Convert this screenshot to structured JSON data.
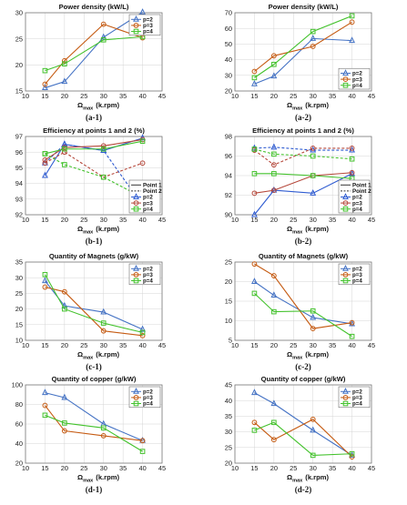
{
  "figure": {
    "charts": [
      {
        "id": "a-1",
        "title": "Power density (kW/L)",
        "caption": "(a-1)",
        "x": [
          15,
          20,
          30,
          40
        ],
        "xlim": [
          10,
          45
        ],
        "xticks": [
          10,
          15,
          20,
          25,
          30,
          35,
          40,
          45
        ],
        "ylim": [
          15,
          30
        ],
        "yticks": [
          15,
          20,
          25,
          30
        ],
        "xlabel_main": "Ω",
        "xlabel_sub": "max",
        "xlabel_unit": "(k.rpm)",
        "legend_pos": "top-right",
        "series": [
          {
            "name": "p=2",
            "color": "#4472c4",
            "marker": "triangle",
            "dash": "solid",
            "values": [
              15.6,
              16.8,
              25.3,
              30.1
            ]
          },
          {
            "name": "p=3",
            "color": "#c55a11",
            "marker": "circle",
            "dash": "solid",
            "values": [
              16.3,
              20.8,
              27.8,
              25.2
            ]
          },
          {
            "name": "p=4",
            "color": "#43c22c",
            "marker": "square",
            "dash": "solid",
            "values": [
              18.9,
              20.2,
              24.8,
              25.4
            ]
          }
        ]
      },
      {
        "id": "a-2",
        "title": "Power density (kW/L)",
        "caption": "(a-2)",
        "x": [
          15,
          20,
          30,
          40
        ],
        "xlim": [
          10,
          45
        ],
        "xticks": [
          10,
          15,
          20,
          25,
          30,
          35,
          40,
          45
        ],
        "ylim": [
          20,
          70
        ],
        "yticks": [
          20,
          30,
          40,
          50,
          60,
          70
        ],
        "xlabel_main": "Ω",
        "xlabel_sub": "max",
        "xlabel_unit": "(k.rpm)",
        "legend_pos": "bottom-right",
        "series": [
          {
            "name": "p=2",
            "color": "#4472c4",
            "marker": "triangle",
            "dash": "solid",
            "values": [
              24.5,
              29.5,
              53.5,
              52.2
            ]
          },
          {
            "name": "p=3",
            "color": "#c55a11",
            "marker": "circle",
            "dash": "solid",
            "values": [
              32.5,
              42.5,
              48.5,
              64.0
            ]
          },
          {
            "name": "p=4",
            "color": "#43c22c",
            "marker": "square",
            "dash": "solid",
            "values": [
              28.5,
              37.0,
              58.0,
              68.0
            ]
          }
        ]
      },
      {
        "id": "b-1",
        "title": "Efficiency at points 1 and 2 (%)",
        "caption": "(b-1)",
        "x": [
          15,
          20,
          30,
          40
        ],
        "xlim": [
          10,
          45
        ],
        "xticks": [
          10,
          15,
          20,
          25,
          30,
          35,
          40,
          45
        ],
        "ylim": [
          92,
          97
        ],
        "yticks": [
          92,
          93,
          94,
          95,
          96,
          97
        ],
        "xlabel_main": "Ω",
        "xlabel_sub": "max",
        "xlabel_unit": "(k.rpm)",
        "legend_pos": "bottom-right",
        "legend_keys": [
          {
            "name": "Point 1",
            "color": "#333333",
            "dash": "solid",
            "marker": "none"
          },
          {
            "name": "Point 2",
            "color": "#333333",
            "dash": "dashed",
            "marker": "none"
          },
          {
            "name": "p=2",
            "color": "#2e5bd1",
            "dash": "solid",
            "marker": "triangle"
          },
          {
            "name": "p=3",
            "color": "#b5473a",
            "dash": "solid",
            "marker": "circle"
          },
          {
            "name": "p=4",
            "color": "#43c22c",
            "dash": "solid",
            "marker": "square"
          }
        ],
        "series": [
          {
            "name": "p=2 Point 1",
            "color": "#2e5bd1",
            "marker": "triangle",
            "dash": "solid",
            "values": [
              94.5,
              96.5,
              96.1,
              96.9
            ]
          },
          {
            "name": "p=2 Point 2",
            "color": "#2e5bd1",
            "marker": "triangle",
            "dash": "dashed",
            "values": [
              95.3,
              96.5,
              96.1,
              92.6
            ]
          },
          {
            "name": "p=3 Point 1",
            "color": "#b5473a",
            "marker": "circle",
            "dash": "solid",
            "values": [
              95.5,
              96.3,
              96.4,
              96.8
            ]
          },
          {
            "name": "p=3 Point 2",
            "color": "#b5473a",
            "marker": "circle",
            "dash": "dashed",
            "values": [
              95.3,
              96.0,
              94.4,
              95.3
            ]
          },
          {
            "name": "p=4 Point 1",
            "color": "#43c22c",
            "marker": "square",
            "dash": "solid",
            "values": [
              95.9,
              96.2,
              96.2,
              96.7
            ]
          },
          {
            "name": "p=4 Point 2",
            "color": "#43c22c",
            "marker": "square",
            "dash": "dashed",
            "values": [
              95.9,
              95.2,
              94.4,
              93.1
            ]
          }
        ]
      },
      {
        "id": "b-2",
        "title": "Efficiency at points 1 and 2 (%)",
        "caption": "(b-2)",
        "x": [
          15,
          20,
          30,
          40
        ],
        "xlim": [
          10,
          45
        ],
        "xticks": [
          10,
          15,
          20,
          25,
          30,
          35,
          40,
          45
        ],
        "ylim": [
          90,
          98
        ],
        "yticks": [
          90,
          92,
          94,
          96,
          98
        ],
        "xlabel_main": "Ω",
        "xlabel_sub": "max",
        "xlabel_unit": "(k.rpm)",
        "legend_pos": "bottom-right",
        "legend_keys": [
          {
            "name": "Point 1",
            "color": "#333333",
            "dash": "solid",
            "marker": "none"
          },
          {
            "name": "Point 2",
            "color": "#333333",
            "dash": "dashed",
            "marker": "none"
          },
          {
            "name": "p=2",
            "color": "#2e5bd1",
            "dash": "solid",
            "marker": "triangle"
          },
          {
            "name": "p=3",
            "color": "#b5473a",
            "dash": "solid",
            "marker": "circle"
          },
          {
            "name": "p=4",
            "color": "#43c22c",
            "dash": "solid",
            "marker": "square"
          }
        ],
        "series": [
          {
            "name": "p=2 Point 1",
            "color": "#2e5bd1",
            "marker": "triangle",
            "dash": "solid",
            "values": [
              90.0,
              92.5,
              92.2,
              94.2
            ]
          },
          {
            "name": "p=2 Point 2",
            "color": "#2e5bd1",
            "marker": "triangle",
            "dash": "dashed",
            "values": [
              96.8,
              96.9,
              96.6,
              96.6
            ]
          },
          {
            "name": "p=3 Point 1",
            "color": "#b5473a",
            "marker": "circle",
            "dash": "solid",
            "values": [
              92.2,
              92.5,
              94.0,
              94.3
            ]
          },
          {
            "name": "p=3 Point 2",
            "color": "#b5473a",
            "marker": "circle",
            "dash": "dashed",
            "values": [
              96.6,
              95.1,
              96.8,
              96.8
            ]
          },
          {
            "name": "p=4 Point 1",
            "color": "#43c22c",
            "marker": "square",
            "dash": "solid",
            "values": [
              94.2,
              94.2,
              94.0,
              93.7
            ]
          },
          {
            "name": "p=4 Point 2",
            "color": "#43c22c",
            "marker": "square",
            "dash": "dashed",
            "values": [
              96.7,
              96.2,
              96.0,
              95.7
            ]
          }
        ]
      },
      {
        "id": "c-1",
        "title": "Quantity of Magnets (g/kW)",
        "caption": "(c-1)",
        "x": [
          15,
          20,
          30,
          40
        ],
        "xlim": [
          10,
          45
        ],
        "xticks": [
          10,
          15,
          20,
          25,
          30,
          35,
          40,
          45
        ],
        "ylim": [
          10,
          35
        ],
        "yticks": [
          10,
          15,
          20,
          25,
          30,
          35
        ],
        "xlabel_main": "Ω",
        "xlabel_sub": "max",
        "xlabel_unit": "(k.rpm)",
        "legend_pos": "top-right",
        "series": [
          {
            "name": "p=2",
            "color": "#4472c4",
            "marker": "triangle",
            "dash": "solid",
            "values": [
              29.0,
              21.0,
              19.0,
              13.5
            ]
          },
          {
            "name": "p=3",
            "color": "#c55a11",
            "marker": "circle",
            "dash": "solid",
            "values": [
              27.0,
              25.5,
              13.0,
              11.5
            ]
          },
          {
            "name": "p=4",
            "color": "#43c22c",
            "marker": "square",
            "dash": "solid",
            "values": [
              31.0,
              20.0,
              15.5,
              12.5
            ]
          }
        ]
      },
      {
        "id": "c-2",
        "title": "Quantity of Magnets (g/kW)",
        "caption": "(c-2)",
        "x": [
          15,
          20,
          30,
          40
        ],
        "xlim": [
          10,
          45
        ],
        "xticks": [
          10,
          15,
          20,
          25,
          30,
          35,
          40,
          45
        ],
        "ylim": [
          5,
          25
        ],
        "yticks": [
          5,
          10,
          15,
          20,
          25
        ],
        "xlabel_main": "Ω",
        "xlabel_sub": "max",
        "xlabel_unit": "(k.rpm)",
        "legend_pos": "top-right",
        "series": [
          {
            "name": "p=2",
            "color": "#4472c4",
            "marker": "triangle",
            "dash": "solid",
            "values": [
              20.0,
              16.5,
              10.8,
              9.2
            ]
          },
          {
            "name": "p=3",
            "color": "#c55a11",
            "marker": "circle",
            "dash": "solid",
            "values": [
              24.5,
              21.5,
              8.0,
              9.5
            ]
          },
          {
            "name": "p=4",
            "color": "#43c22c",
            "marker": "square",
            "dash": "solid",
            "values": [
              17.0,
              12.3,
              12.5,
              6.0
            ]
          }
        ]
      },
      {
        "id": "d-1",
        "title": "Quantity of copper (g/kW)",
        "caption": "(d-1)",
        "x": [
          15,
          20,
          30,
          40
        ],
        "xlim": [
          10,
          45
        ],
        "xticks": [
          10,
          15,
          20,
          25,
          30,
          35,
          40,
          45
        ],
        "ylim": [
          20,
          100
        ],
        "yticks": [
          20,
          40,
          60,
          80,
          100
        ],
        "xlabel_main": "Ω",
        "xlabel_sub": "max",
        "xlabel_unit": "(k.rpm)",
        "legend_pos": "top-right",
        "series": [
          {
            "name": "p=2",
            "color": "#4472c4",
            "marker": "triangle",
            "dash": "solid",
            "values": [
              92.0,
              87.0,
              60.0,
              43.0
            ]
          },
          {
            "name": "p=3",
            "color": "#c55a11",
            "marker": "circle",
            "dash": "solid",
            "values": [
              79.0,
              53.0,
              48.0,
              43.0
            ]
          },
          {
            "name": "p=4",
            "color": "#43c22c",
            "marker": "square",
            "dash": "solid",
            "values": [
              69.0,
              61.0,
              56.0,
              32.0
            ]
          }
        ]
      },
      {
        "id": "d-2",
        "title": "Quantity of copper (g/kW)",
        "caption": "(d-2)",
        "x": [
          15,
          20,
          30,
          40
        ],
        "xlim": [
          10,
          45
        ],
        "xticks": [
          10,
          15,
          20,
          25,
          30,
          35,
          40,
          45
        ],
        "ylim": [
          20,
          45
        ],
        "yticks": [
          20,
          25,
          30,
          35,
          40,
          45
        ],
        "xlabel_main": "Ω",
        "xlabel_sub": "max",
        "xlabel_unit": "(k.rpm)",
        "legend_pos": "top-right",
        "series": [
          {
            "name": "p=2",
            "color": "#4472c4",
            "marker": "triangle",
            "dash": "solid",
            "values": [
              42.5,
              39.0,
              30.5,
              22.5
            ]
          },
          {
            "name": "p=3",
            "color": "#c55a11",
            "marker": "circle",
            "dash": "solid",
            "values": [
              33.0,
              27.5,
              34.0,
              22.0
            ]
          },
          {
            "name": "p=4",
            "color": "#43c22c",
            "marker": "square",
            "dash": "solid",
            "values": [
              30.5,
              33.0,
              22.5,
              23.0
            ]
          }
        ]
      }
    ]
  }
}
